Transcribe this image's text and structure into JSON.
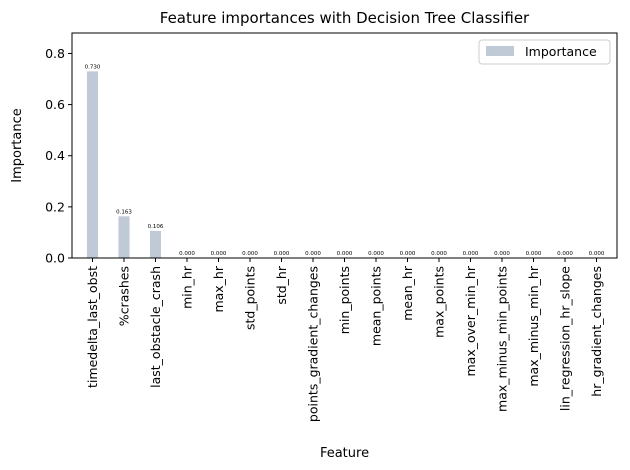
{
  "chart_data": {
    "type": "bar",
    "title": "Feature importances with Decision Tree Classifier",
    "xlabel": "Feature",
    "ylabel": "Importance",
    "ylim": [
      0,
      0.88
    ],
    "yticks": [
      0.0,
      0.2,
      0.4,
      0.6,
      0.8
    ],
    "ytick_labels": [
      "0.0",
      "0.2",
      "0.4",
      "0.6",
      "0.8"
    ],
    "grid": false,
    "legend_position": "top-right",
    "categories": [
      "timedelta_last_obst",
      "%crashes",
      "last_obstacle_crash",
      "min_hr",
      "max_hr",
      "std_points",
      "std_hr",
      "points_gradient_changes",
      "min_points",
      "mean_points",
      "mean_hr",
      "max_points",
      "max_over_min_hr",
      "max_minus_min_points",
      "max_minus_min_hr",
      "lin_regression_hr_slope",
      "hr_gradient_changes"
    ],
    "series": [
      {
        "name": "Importance",
        "color": "#c0cad6",
        "values": [
          0.73,
          0.163,
          0.106,
          0,
          0,
          0,
          0,
          0,
          0,
          0,
          0,
          0,
          0,
          0,
          0,
          0,
          0
        ],
        "labels": [
          "0.730",
          "0.163",
          "0.106",
          "0.000",
          "0.000",
          "0.000",
          "0.000",
          "0.000",
          "0.000",
          "0.000",
          "0.000",
          "0.000",
          "0.000",
          "0.000",
          "0.000",
          "0.000",
          "0.000"
        ]
      }
    ]
  }
}
